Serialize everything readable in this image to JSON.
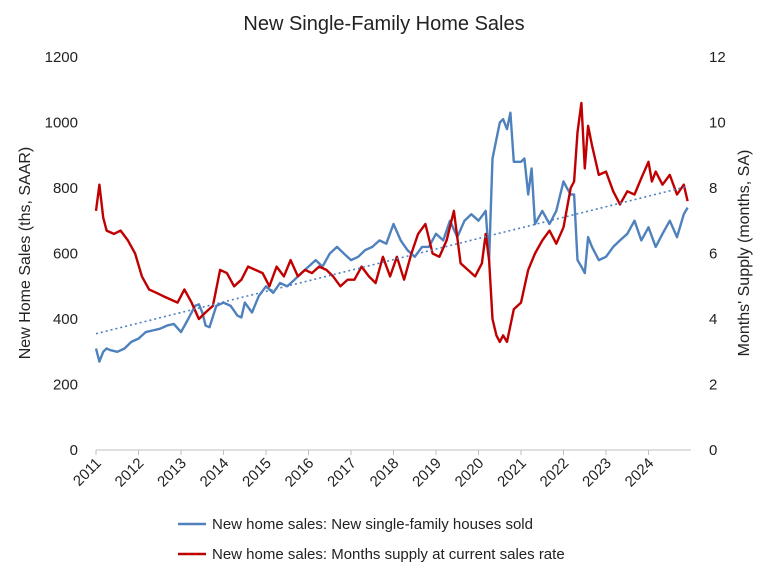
{
  "chart_data": {
    "type": "line",
    "title": "New Single-Family Home Sales",
    "ylabel_left": "New Home Sales (ths, SAAR)",
    "ylabel_right": "Months' Supply (months, SA)",
    "ylim_left": [
      0,
      1200
    ],
    "ylim_right": [
      0,
      12
    ],
    "yticks_left": [
      "0",
      "200",
      "400",
      "600",
      "800",
      "1000",
      "1200"
    ],
    "yticks_right": [
      "0",
      "2",
      "4",
      "6",
      "8",
      "10",
      "12"
    ],
    "x_range": [
      2011,
      2025
    ],
    "xticks": [
      "2011",
      "2012",
      "2013",
      "2014",
      "2015",
      "2016",
      "2017",
      "2018",
      "2019",
      "2020",
      "2021",
      "2022",
      "2023",
      "2024"
    ],
    "grid": false,
    "legend_position": "bottom",
    "series": [
      {
        "name": "New home sales: New single-family houses sold",
        "axis": "left",
        "color": "#4F81BD",
        "x": [
          2011.0,
          2011.08,
          2011.17,
          2011.25,
          2011.33,
          2011.5,
          2011.67,
          2011.83,
          2012.0,
          2012.17,
          2012.33,
          2012.5,
          2012.67,
          2012.83,
          2013.0,
          2013.17,
          2013.33,
          2013.42,
          2013.5,
          2013.58,
          2013.67,
          2013.83,
          2014.0,
          2014.17,
          2014.33,
          2014.42,
          2014.5,
          2014.67,
          2014.83,
          2015.0,
          2015.17,
          2015.33,
          2015.5,
          2015.67,
          2015.83,
          2016.0,
          2016.17,
          2016.33,
          2016.5,
          2016.67,
          2016.83,
          2017.0,
          2017.17,
          2017.33,
          2017.5,
          2017.67,
          2017.83,
          2018.0,
          2018.17,
          2018.33,
          2018.5,
          2018.67,
          2018.83,
          2019.0,
          2019.17,
          2019.33,
          2019.5,
          2019.67,
          2019.83,
          2020.0,
          2020.17,
          2020.25,
          2020.33,
          2020.5,
          2020.58,
          2020.67,
          2020.75,
          2020.83,
          2021.0,
          2021.08,
          2021.17,
          2021.25,
          2021.33,
          2021.5,
          2021.67,
          2021.83,
          2022.0,
          2022.08,
          2022.17,
          2022.25,
          2022.33,
          2022.42,
          2022.5,
          2022.58,
          2022.67,
          2022.83,
          2023.0,
          2023.17,
          2023.33,
          2023.5,
          2023.67,
          2023.83,
          2024.0,
          2024.17,
          2024.33,
          2024.5,
          2024.67,
          2024.83,
          2024.92
        ],
        "values": [
          310,
          270,
          300,
          310,
          305,
          300,
          310,
          330,
          340,
          360,
          365,
          370,
          380,
          385,
          360,
          400,
          440,
          445,
          420,
          380,
          375,
          440,
          450,
          440,
          410,
          405,
          450,
          420,
          470,
          500,
          480,
          510,
          500,
          520,
          540,
          560,
          580,
          560,
          600,
          620,
          600,
          580,
          590,
          610,
          620,
          640,
          630,
          690,
          640,
          610,
          590,
          620,
          620,
          660,
          640,
          700,
          650,
          700,
          720,
          700,
          730,
          580,
          890,
          1000,
          1010,
          980,
          1030,
          880,
          880,
          890,
          780,
          860,
          690,
          730,
          690,
          730,
          820,
          800,
          780,
          780,
          580,
          560,
          540,
          650,
          620,
          580,
          590,
          620,
          640,
          660,
          700,
          640,
          680,
          620,
          660,
          700,
          650,
          720,
          740
        ]
      },
      {
        "name": "New home sales: Months supply at current sales rate",
        "axis": "right",
        "color": "#C00000",
        "x": [
          2011.0,
          2011.08,
          2011.17,
          2011.25,
          2011.42,
          2011.58,
          2011.75,
          2011.92,
          2012.08,
          2012.25,
          2012.42,
          2012.58,
          2012.75,
          2012.92,
          2013.08,
          2013.25,
          2013.42,
          2013.58,
          2013.75,
          2013.92,
          2014.08,
          2014.25,
          2014.42,
          2014.58,
          2014.75,
          2014.92,
          2015.08,
          2015.25,
          2015.42,
          2015.58,
          2015.75,
          2015.92,
          2016.08,
          2016.25,
          2016.42,
          2016.58,
          2016.75,
          2016.92,
          2017.08,
          2017.25,
          2017.42,
          2017.58,
          2017.75,
          2017.92,
          2018.08,
          2018.25,
          2018.42,
          2018.58,
          2018.75,
          2018.92,
          2019.08,
          2019.25,
          2019.42,
          2019.58,
          2019.75,
          2019.92,
          2020.08,
          2020.17,
          2020.25,
          2020.33,
          2020.42,
          2020.5,
          2020.58,
          2020.67,
          2020.83,
          2021.0,
          2021.17,
          2021.33,
          2021.5,
          2021.67,
          2021.83,
          2022.0,
          2022.17,
          2022.25,
          2022.33,
          2022.42,
          2022.5,
          2022.58,
          2022.67,
          2022.83,
          2023.0,
          2023.17,
          2023.33,
          2023.5,
          2023.67,
          2023.83,
          2024.0,
          2024.08,
          2024.17,
          2024.33,
          2024.5,
          2024.67,
          2024.83,
          2024.92
        ],
        "values": [
          7.3,
          8.1,
          7.1,
          6.7,
          6.6,
          6.7,
          6.4,
          6.0,
          5.3,
          4.9,
          4.8,
          4.7,
          4.6,
          4.5,
          4.9,
          4.5,
          4.0,
          4.2,
          4.4,
          5.5,
          5.4,
          5.0,
          5.2,
          5.6,
          5.5,
          5.4,
          5.0,
          5.6,
          5.3,
          5.8,
          5.3,
          5.5,
          5.4,
          5.6,
          5.5,
          5.3,
          5.0,
          5.2,
          5.2,
          5.6,
          5.3,
          5.1,
          5.9,
          5.3,
          5.9,
          5.2,
          6.0,
          6.6,
          6.9,
          6.0,
          5.9,
          6.4,
          7.3,
          5.7,
          5.5,
          5.3,
          5.7,
          6.6,
          5.8,
          4.0,
          3.5,
          3.3,
          3.5,
          3.3,
          4.3,
          4.5,
          5.5,
          6.0,
          6.4,
          6.7,
          6.3,
          6.8,
          8.0,
          8.2,
          9.7,
          10.6,
          8.6,
          9.9,
          9.3,
          8.4,
          8.5,
          7.9,
          7.5,
          7.9,
          7.8,
          8.3,
          8.8,
          8.2,
          8.5,
          8.1,
          8.4,
          7.8,
          8.1,
          7.6
        ]
      },
      {
        "name": "Linear trend (new home sales)",
        "axis": "left",
        "color": "#4F81BD",
        "style": "dotted",
        "x": [
          2011.0,
          2024.92
        ],
        "values": [
          355,
          805
        ]
      }
    ]
  }
}
